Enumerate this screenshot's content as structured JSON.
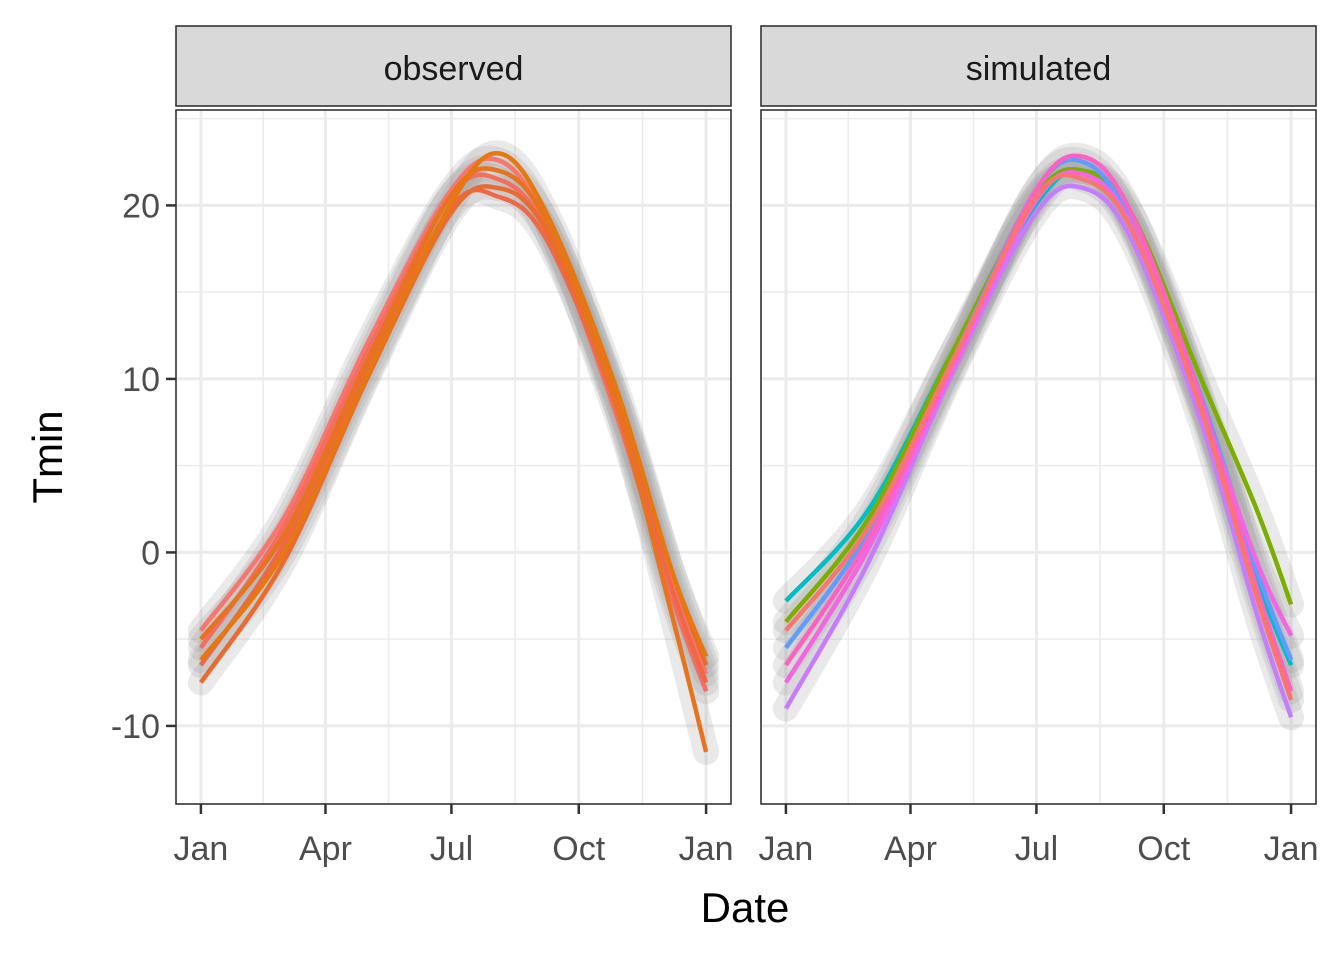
{
  "chart_data": {
    "type": "line",
    "xlabel": "Date",
    "ylabel": "Tmin",
    "x_ticks": [
      "Jan",
      "Apr",
      "Jul",
      "Oct",
      "Jan"
    ],
    "x_tick_days": [
      0,
      90,
      181,
      273,
      365
    ],
    "y_ticks": [
      -10,
      0,
      10,
      20
    ],
    "ylim": [
      -14.5,
      25.5
    ],
    "xlim": [
      -18,
      383
    ],
    "grid": true,
    "band_color": "#999999",
    "panels": [
      {
        "title": "observed",
        "series": [
          {
            "color": "#F8766D",
            "points": [
              [
                0,
                -4.5
              ],
              [
                60,
                2
              ],
              [
                120,
                12
              ],
              [
                180,
                20.8
              ],
              [
                215,
                22.6
              ],
              [
                250,
                19
              ],
              [
                300,
                9
              ],
              [
                340,
                -1.5
              ],
              [
                365,
                -7
              ]
            ]
          },
          {
            "color": "#F46D5F",
            "points": [
              [
                0,
                -5.5
              ],
              [
                60,
                1.5
              ],
              [
                120,
                11.5
              ],
              [
                180,
                20.5
              ],
              [
                215,
                21.5
              ],
              [
                250,
                18.5
              ],
              [
                300,
                8
              ],
              [
                340,
                -2.5
              ],
              [
                365,
                -8
              ]
            ]
          },
          {
            "color": "#EE6848",
            "points": [
              [
                0,
                -6.5
              ],
              [
                60,
                0.5
              ],
              [
                120,
                10.5
              ],
              [
                180,
                19.8
              ],
              [
                215,
                20.5
              ],
              [
                250,
                18
              ],
              [
                300,
                8.5
              ],
              [
                340,
                -2
              ],
              [
                365,
                -7.5
              ]
            ]
          },
          {
            "color": "#E96B2F",
            "points": [
              [
                0,
                -7.5
              ],
              [
                60,
                -0.5
              ],
              [
                120,
                10
              ],
              [
                180,
                19.5
              ],
              [
                215,
                21
              ],
              [
                250,
                18.5
              ],
              [
                300,
                9
              ],
              [
                340,
                -1
              ],
              [
                365,
                -6.5
              ]
            ]
          },
          {
            "color": "#E7731F",
            "points": [
              [
                0,
                -5
              ],
              [
                60,
                1
              ],
              [
                120,
                11
              ],
              [
                180,
                20.5
              ],
              [
                215,
                22
              ],
              [
                250,
                19
              ],
              [
                300,
                8.5
              ],
              [
                340,
                -3.5
              ],
              [
                365,
                -11.5
              ]
            ]
          },
          {
            "color": "#E6780F",
            "points": [
              [
                0,
                -6.2
              ],
              [
                60,
                0
              ],
              [
                120,
                10.2
              ],
              [
                180,
                20
              ],
              [
                215,
                23
              ],
              [
                250,
                19.5
              ],
              [
                300,
                9.5
              ],
              [
                340,
                -1
              ],
              [
                365,
                -6
              ]
            ]
          }
        ]
      },
      {
        "title": "simulated",
        "series": [
          {
            "color": "#00BFC4",
            "points": [
              [
                0,
                -2.8
              ],
              [
                60,
                2.5
              ],
              [
                120,
                11.5
              ],
              [
                180,
                20
              ],
              [
                215,
                22
              ],
              [
                250,
                19
              ],
              [
                300,
                8.5
              ],
              [
                340,
                -1.5
              ],
              [
                365,
                -6.5
              ]
            ]
          },
          {
            "color": "#7CAE00",
            "points": [
              [
                0,
                -4
              ],
              [
                60,
                2
              ],
              [
                120,
                11.5
              ],
              [
                180,
                20.5
              ],
              [
                215,
                22
              ],
              [
                250,
                19.5
              ],
              [
                300,
                10
              ],
              [
                340,
                2.5
              ],
              [
                365,
                -3
              ]
            ]
          },
          {
            "color": "#619CFF",
            "points": [
              [
                0,
                -5.5
              ],
              [
                60,
                1.2
              ],
              [
                120,
                11
              ],
              [
                180,
                20.8
              ],
              [
                215,
                22.5
              ],
              [
                250,
                19
              ],
              [
                300,
                9
              ],
              [
                340,
                -1
              ],
              [
                365,
                -6.2
              ]
            ]
          },
          {
            "color": "#C77CFF",
            "points": [
              [
                0,
                -9
              ],
              [
                60,
                -0.5
              ],
              [
                120,
                10.3
              ],
              [
                180,
                19.5
              ],
              [
                215,
                21
              ],
              [
                250,
                18
              ],
              [
                300,
                7.5
              ],
              [
                340,
                -3.5
              ],
              [
                365,
                -9.5
              ]
            ]
          },
          {
            "color": "#F564E3",
            "points": [
              [
                0,
                -7.5
              ],
              [
                60,
                0.3
              ],
              [
                120,
                10.5
              ],
              [
                180,
                20.2
              ],
              [
                215,
                21.8
              ],
              [
                250,
                18.8
              ],
              [
                300,
                8.5
              ],
              [
                340,
                -0.5
              ],
              [
                365,
                -4.8
              ]
            ]
          },
          {
            "color": "#FF61C3",
            "points": [
              [
                0,
                -6.5
              ],
              [
                60,
                0.8
              ],
              [
                120,
                10.8
              ],
              [
                180,
                20.8
              ],
              [
                215,
                22.8
              ],
              [
                250,
                19.5
              ],
              [
                300,
                8.8
              ],
              [
                340,
                -2
              ],
              [
                365,
                -8
              ]
            ]
          },
          {
            "color": "#F8766D",
            "points": [
              [
                0,
                -4.5
              ],
              [
                60,
                1.5
              ],
              [
                120,
                11
              ],
              [
                180,
                20.4
              ],
              [
                215,
                21.5
              ],
              [
                250,
                18.6
              ],
              [
                300,
                8.2
              ],
              [
                340,
                -2.5
              ],
              [
                365,
                -8.5
              ]
            ]
          }
        ]
      }
    ]
  }
}
